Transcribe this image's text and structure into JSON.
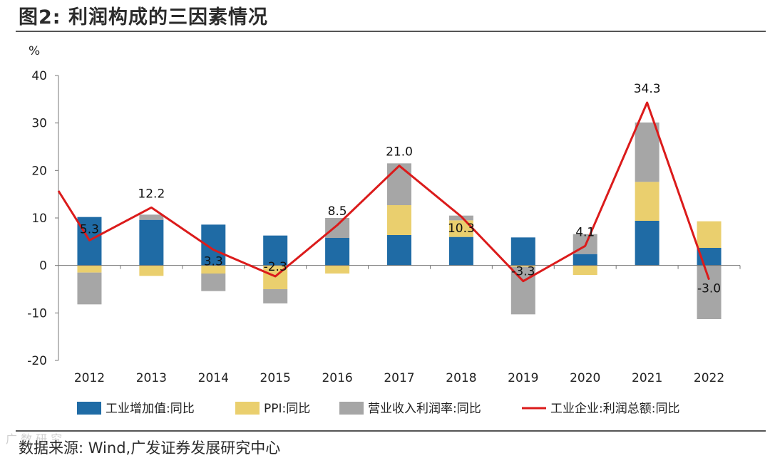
{
  "figure_title": "图2:  利润构成的三因素情况",
  "source_text": "数据来源:  Wind,广发证券发展研究中心",
  "watermark_text": "广 数 研 究",
  "colors": {
    "industrial_value_added": "#1F6BA5",
    "ppi": "#EACF6E",
    "margin": "#A6A6A6",
    "profit_line": "#DB1B1B"
  },
  "chart_data": {
    "type": "bar",
    "stacked": true,
    "title": "",
    "unit_label": "%",
    "xlabel": "",
    "ylabel": "%",
    "ylim": [
      -20,
      40
    ],
    "yticks": [
      -20,
      -10,
      0,
      10,
      20,
      30,
      40
    ],
    "ytick_labels": [
      "-20",
      "-10",
      "0",
      "10",
      "20",
      "30",
      "40"
    ],
    "categories": [
      "2012",
      "2013",
      "2014",
      "2015",
      "2016",
      "2017",
      "2018",
      "2019",
      "2020",
      "2021",
      "2022"
    ],
    "series": [
      {
        "name": "工业增加值:同比",
        "type": "bar",
        "color_key": "industrial_value_added",
        "values": [
          10.2,
          9.6,
          8.6,
          6.3,
          5.8,
          6.4,
          6.0,
          5.9,
          2.4,
          9.4,
          3.7
        ]
      },
      {
        "name": "PPI:同比",
        "type": "bar",
        "color_key": "ppi",
        "values": [
          -1.5,
          -2.2,
          -1.7,
          -5.0,
          -1.7,
          6.3,
          3.5,
          -0.3,
          -2.0,
          8.2,
          5.6
        ]
      },
      {
        "name": "营业收入利润率:同比",
        "type": "bar",
        "color_key": "margin",
        "values": [
          -6.7,
          1.1,
          -3.7,
          -3.0,
          4.2,
          8.8,
          1.0,
          -10.0,
          4.2,
          12.5,
          -11.3
        ]
      },
      {
        "name": "工业企业:利润总额:同比",
        "type": "line",
        "color_key": "profit_line",
        "values": [
          5.3,
          12.2,
          3.3,
          -2.3,
          8.5,
          21.0,
          10.3,
          -3.3,
          4.1,
          34.3,
          -3.0
        ],
        "data_labels": [
          "5.3",
          "12.2",
          "3.3",
          "-2.3",
          "8.5",
          "21.0",
          "10.3",
          "-3.3",
          "4.1",
          "34.3",
          "-3.0"
        ],
        "start_value": 15.7
      }
    ],
    "legend": [
      "工业增加值:同比",
      "PPI:同比",
      "营业收入利润率:同比",
      "工业企业:利润总额:同比"
    ],
    "legend_position": "bottom",
    "grid": false
  }
}
